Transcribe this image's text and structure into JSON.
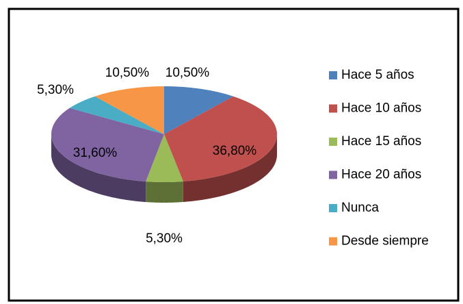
{
  "chart_data": {
    "type": "pie",
    "three_d": true,
    "categories": [
      "Hace 5 años",
      "Hace 10 años",
      "Hace 15 años",
      "Hace 20 años",
      "Nunca",
      "Desde siempre"
    ],
    "values": [
      10.5,
      36.8,
      5.3,
      31.6,
      5.3,
      10.5
    ],
    "value_labels": [
      "10,50%",
      "36,80%",
      "5,30%",
      "31,60%",
      "5,30%",
      "10,50%"
    ],
    "colors": [
      "#4f81bd",
      "#c0504d",
      "#9bbb59",
      "#8064a2",
      "#4bacc6",
      "#f79646"
    ],
    "legend": "right"
  }
}
